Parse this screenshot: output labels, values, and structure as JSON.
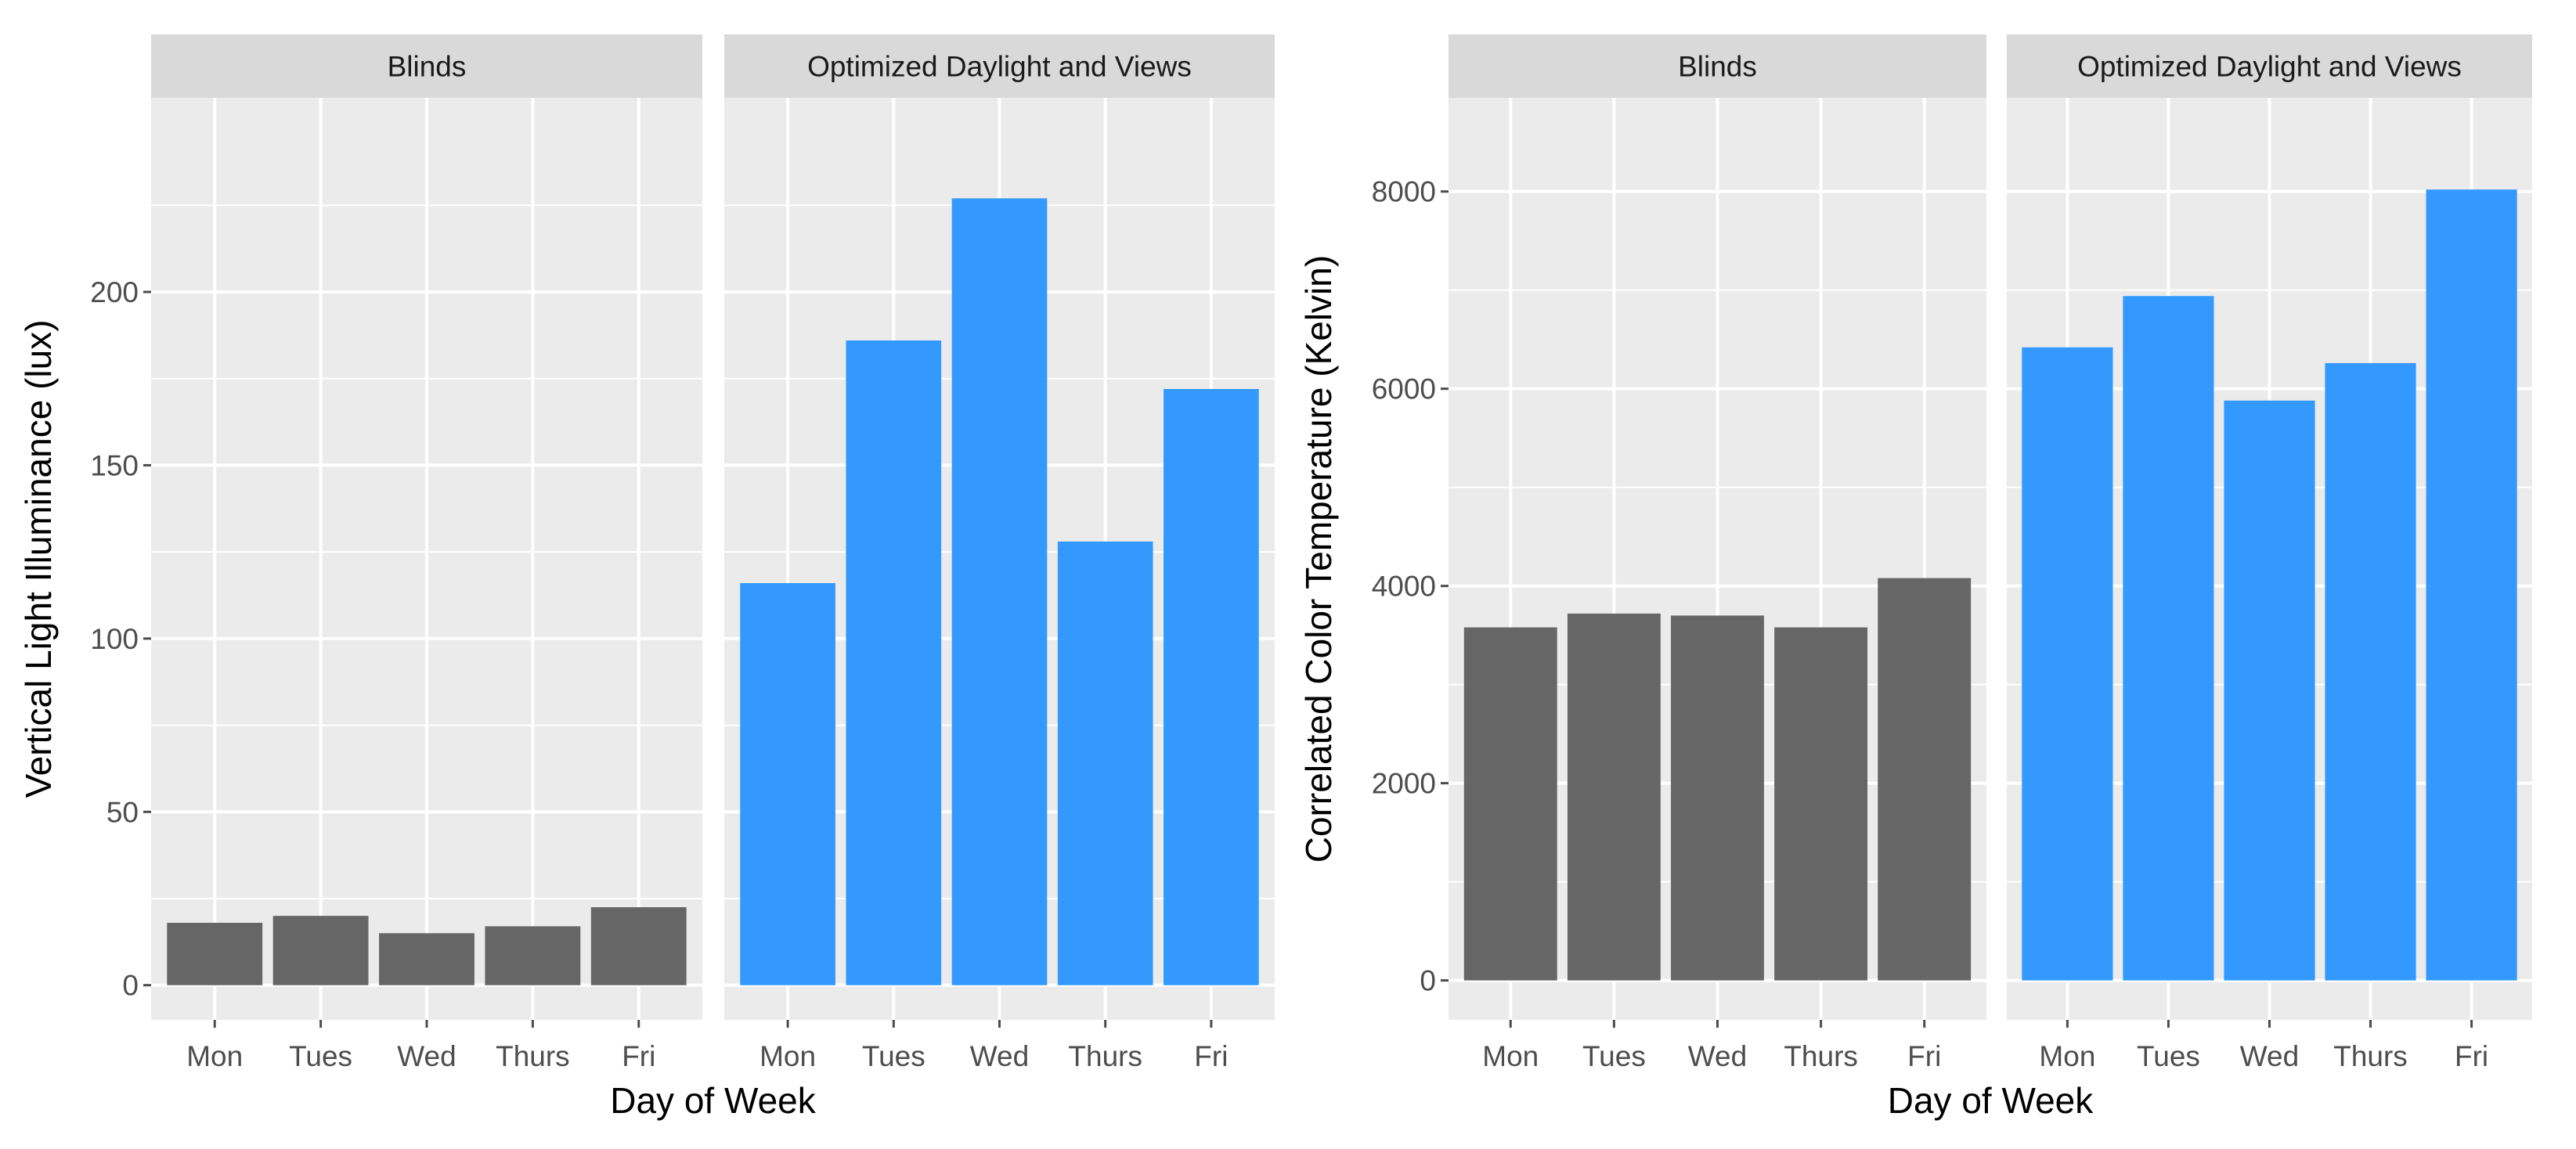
{
  "colors": {
    "panel_background": "#ebebeb",
    "strip_background": "#d9d9d9",
    "gridline": "#ffffff",
    "blinds_bar": "#666666",
    "optimized_bar": "#3399ff",
    "tick": "#4d4d4d"
  },
  "chart_data": [
    {
      "type": "bar",
      "facets": [
        "Blinds",
        "Optimized Daylight and Views"
      ],
      "categories": [
        "Mon",
        "Tues",
        "Wed",
        "Thurs",
        "Fri"
      ],
      "series": [
        {
          "name": "Blinds",
          "values": [
            18,
            20,
            15,
            17,
            22.5
          ]
        },
        {
          "name": "Optimized Daylight and Views",
          "values": [
            116,
            186,
            227,
            128,
            172
          ]
        }
      ],
      "xlabel": "Day of Week",
      "ylabel": "Vertical Light Illuminance (lux)",
      "ylim": [
        -10,
        256
      ],
      "yticks": [
        0,
        50,
        100,
        150,
        200
      ],
      "ytick_labels": [
        "0",
        "50",
        "100",
        "150",
        "200"
      ],
      "grid": true
    },
    {
      "type": "bar",
      "facets": [
        "Blinds",
        "Optimized Daylight and Views"
      ],
      "categories": [
        "Mon",
        "Tues",
        "Wed",
        "Thurs",
        "Fri"
      ],
      "series": [
        {
          "name": "Blinds",
          "values": [
            3580,
            3720,
            3700,
            3580,
            4080
          ]
        },
        {
          "name": "Optimized Daylight and Views",
          "values": [
            6420,
            6940,
            5880,
            6260,
            8020
          ]
        }
      ],
      "xlabel": "Day of Week",
      "ylabel": "Correlated Color Temperature (Kelvin)",
      "ylim": [
        -400,
        8950
      ],
      "yticks": [
        0,
        2000,
        4000,
        6000,
        8000
      ],
      "ytick_labels": [
        "0",
        "2000",
        "4000",
        "6000",
        "8000"
      ],
      "grid": true
    }
  ]
}
